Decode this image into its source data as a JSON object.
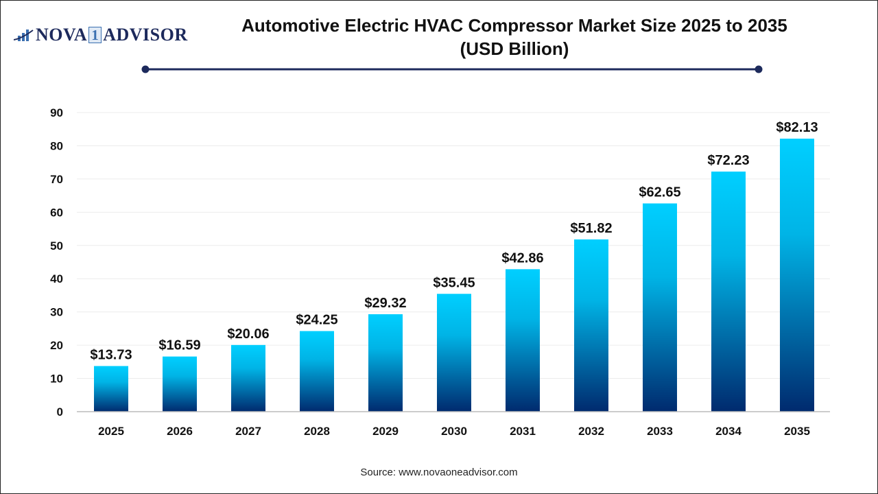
{
  "logo": {
    "text_left": "NOVA",
    "text_mid": "1",
    "text_right": "ADVISOR"
  },
  "source": "Source: www.novaoneadvisor.com",
  "colors": {
    "bar_top": "#00cfff",
    "bar_bottom": "#002a6e",
    "title_line": "#1d2a5c"
  },
  "chart_data": {
    "type": "bar",
    "title": "Automotive Electric HVAC Compressor Market Size 2025 to 2035",
    "subtitle": "(USD Billion)",
    "categories": [
      "2025",
      "2026",
      "2027",
      "2028",
      "2029",
      "2030",
      "2031",
      "2032",
      "2033",
      "2034",
      "2035"
    ],
    "values": [
      13.73,
      16.59,
      20.06,
      24.25,
      29.32,
      35.45,
      42.86,
      51.82,
      62.65,
      72.23,
      82.13
    ],
    "data_labels": [
      "$13.73",
      "$16.59",
      "$20.06",
      "$24.25",
      "$29.32",
      "$35.45",
      "$42.86",
      "$51.82",
      "$62.65",
      "$72.23",
      "$82.13"
    ],
    "ylim": [
      0,
      90
    ],
    "yticks": [
      0,
      10,
      20,
      30,
      40,
      50,
      60,
      70,
      80,
      90
    ],
    "grid": true,
    "xlabel": "",
    "ylabel": ""
  }
}
